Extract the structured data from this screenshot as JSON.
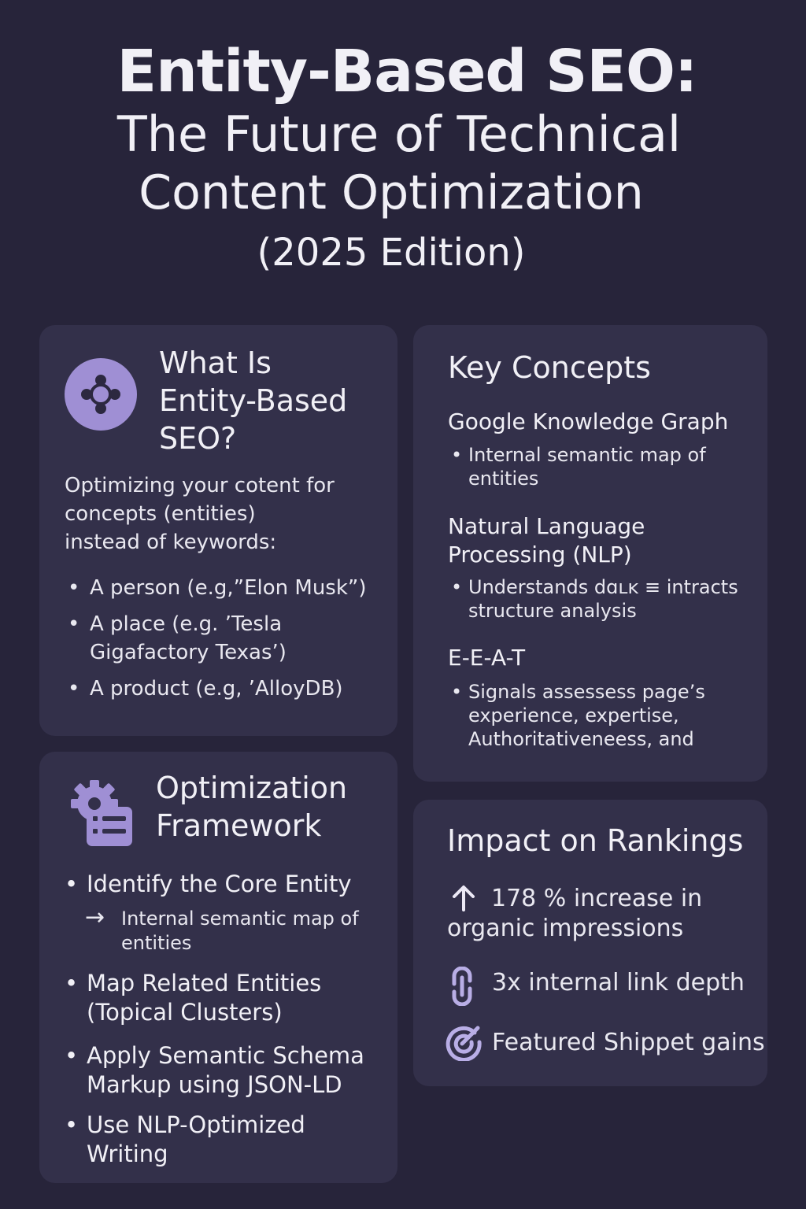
{
  "title": {
    "line1": "Entity-Based SEO:",
    "line2": "The Future of Technical",
    "line3": "Content Optimization",
    "line4": "(2025 Edition)"
  },
  "what": {
    "title_l1": "What Is",
    "title_l2": "Entity-Based",
    "title_l3": "SEO?",
    "intro_l1": "Optimizing your cotent for",
    "intro_l2": "concepts (entities)",
    "intro_l3": "instead of keywords:",
    "items": [
      "A person (e.g,”Elon Musk”)",
      "A place (e.g. ’Tesla Gigafactory Texas’)",
      "A product (e.g, ’AlloyDB)"
    ]
  },
  "key": {
    "title": "Key Concepts",
    "sections": [
      {
        "heading": "Google Knowledge Graph",
        "bullet": "Internal semantic map of entities"
      },
      {
        "heading": "Natural Language Processing (NLP)",
        "bullet": "Understands dɑʟĸ ≡ intracts structure analysis"
      },
      {
        "heading": "E-E-A-T",
        "bullet": "Signals assessess page’s experience, expertise, Authoritativeneess, and"
      }
    ]
  },
  "opt": {
    "title_l1": "Optimization",
    "title_l2": "Framework",
    "items": [
      {
        "strong": "Identify the Core Entity",
        "sub": "Internal semantic map of entities"
      },
      {
        "strong": "Map Related Entities (Topical Clusters)"
      },
      {
        "strong": "Apply Semantic Schema Markup",
        "light": " using JSON-LD"
      },
      {
        "strong": "Use NLP-Optimized Writing"
      }
    ]
  },
  "impact": {
    "title": "Impact on Rankings",
    "stat1_strong": "178 %",
    "stat1_rest": " increase in organic impressions",
    "stat2": "3x internal link depth",
    "stat3": "Featured Shippet gains"
  },
  "colors": {
    "background": "#27243a",
    "card": "#33304a",
    "accent": "#9f8fd4"
  },
  "icons": [
    "network-icon",
    "gear-list-icon",
    "arrow-up-icon",
    "link-icon",
    "target-icon"
  ]
}
